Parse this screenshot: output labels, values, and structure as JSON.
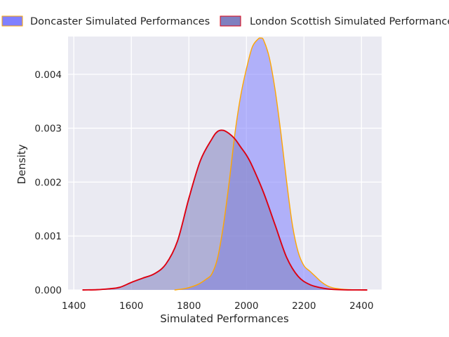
{
  "chart_data": {
    "type": "area",
    "xlabel": "Simulated Performances",
    "ylabel": "Density",
    "xlim": [
      1380,
      2470
    ],
    "ylim": [
      0,
      0.0047
    ],
    "x_ticks": [
      1400,
      1600,
      1800,
      2000,
      2200,
      2400
    ],
    "x_tick_labels": [
      "1400",
      "1600",
      "1800",
      "2000",
      "2200",
      "2400"
    ],
    "y_ticks": [
      0,
      0.001,
      0.002,
      0.003,
      0.004
    ],
    "y_tick_labels": [
      "0.000",
      "0.001",
      "0.002",
      "0.003",
      "0.004"
    ],
    "grid": true,
    "legend_position": "top",
    "series": [
      {
        "name": "Doncaster Simulated Performances",
        "fill_color": "#8080ff",
        "line_color": "#ffa500",
        "x": [
          1750,
          1790,
          1830,
          1860,
          1880,
          1900,
          1920,
          1940,
          1960,
          1980,
          2000,
          2020,
          2040,
          2050,
          2060,
          2080,
          2100,
          2120,
          2140,
          2160,
          2180,
          2200,
          2220,
          2240,
          2260,
          2280,
          2300,
          2340,
          2380,
          2420
        ],
        "y": [
          0,
          3e-05,
          0.0001,
          0.0002,
          0.0003,
          0.0006,
          0.0012,
          0.002,
          0.0029,
          0.0036,
          0.0041,
          0.0045,
          0.00465,
          0.00467,
          0.00463,
          0.0043,
          0.0037,
          0.0029,
          0.002,
          0.0012,
          0.0007,
          0.00045,
          0.00035,
          0.00025,
          0.00015,
          8e-05,
          4e-05,
          1e-05,
          3e-06,
          0
        ]
      },
      {
        "name": "London Scottish Simulated Performances",
        "fill_color": "#8080c0",
        "line_color": "#dd0011",
        "x": [
          1430,
          1480,
          1520,
          1560,
          1600,
          1640,
          1680,
          1720,
          1760,
          1800,
          1840,
          1880,
          1900,
          1920,
          1940,
          1960,
          1980,
          2000,
          2020,
          2060,
          2100,
          2140,
          2180,
          2220,
          2260,
          2300,
          2340,
          2380,
          2420
        ],
        "y": [
          0,
          5e-06,
          2e-05,
          5e-05,
          0.00014,
          0.00022,
          0.0003,
          0.00048,
          0.0009,
          0.0017,
          0.0024,
          0.0028,
          0.00294,
          0.00296,
          0.0029,
          0.0028,
          0.00265,
          0.0025,
          0.0023,
          0.0018,
          0.0012,
          0.0006,
          0.00025,
          0.0001,
          4e-05,
          1e-05,
          3e-06,
          1e-06,
          0
        ]
      }
    ]
  }
}
